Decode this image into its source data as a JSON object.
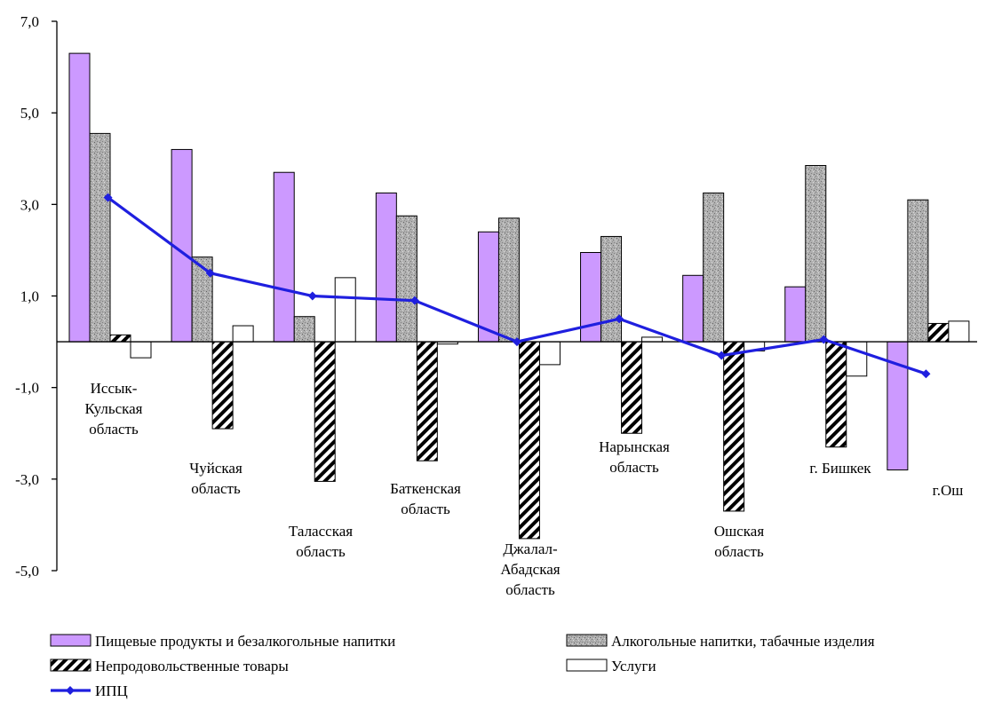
{
  "chart_data": {
    "type": "bar",
    "categories": [
      "Иссык-Кульская область",
      "Чуйская область",
      "Таласская область",
      "Баткенская область",
      "Джалал-Абадская область",
      "Нарынская область",
      "Ошская область",
      "г. Бишкек",
      "г.Ош"
    ],
    "category_label_lines": [
      [
        "Иссык-",
        "Кульская",
        "область"
      ],
      [
        "Чуйская",
        "область"
      ],
      [
        "Таласская",
        "область"
      ],
      [
        "Баткенская",
        "область"
      ],
      [
        "Джалал-",
        "Абадская",
        "область"
      ],
      [
        "Нарынская",
        "область"
      ],
      [
        "Ошская",
        "область"
      ],
      [
        "г. Бишкек"
      ],
      [
        "г.Ош"
      ]
    ],
    "series": [
      {
        "name": "Пищевые продукты и безалкогольные напитки",
        "kind": "bar",
        "color": "#cc99ff",
        "pattern": "solid",
        "values": [
          6.3,
          4.2,
          3.7,
          3.25,
          2.4,
          1.95,
          1.45,
          1.2,
          -2.8
        ]
      },
      {
        "name": "Алкогольные напитки, табачные изделия",
        "kind": "bar",
        "color": "#a6a6a6",
        "pattern": "speckle",
        "values": [
          4.55,
          1.85,
          0.55,
          2.75,
          2.7,
          2.3,
          3.25,
          3.85,
          3.1
        ]
      },
      {
        "name": "Непродовольственные товары",
        "kind": "bar",
        "color": "#000000",
        "pattern": "diagonal",
        "values": [
          0.15,
          -1.9,
          -3.05,
          -2.6,
          -4.3,
          -2.0,
          -3.7,
          -2.3,
          0.4
        ]
      },
      {
        "name": "Услуги",
        "kind": "bar",
        "color": "#ffffff",
        "pattern": "solid",
        "values": [
          -0.35,
          0.35,
          1.4,
          -0.05,
          -0.5,
          0.1,
          -0.2,
          -0.75,
          0.45
        ]
      },
      {
        "name": "ИПЦ",
        "kind": "line",
        "color": "#1f1fdf",
        "values": [
          3.15,
          1.5,
          1.0,
          0.9,
          0.0,
          0.5,
          -0.3,
          0.05,
          -0.7
        ]
      }
    ],
    "y_ticks": [
      "7,0",
      "5,0",
      "3,0",
      "1,0",
      "-1,0",
      "-3,0",
      "-5,0"
    ],
    "y_tick_values": [
      7,
      5,
      3,
      1,
      -1,
      -3,
      -5
    ],
    "ylim": [
      -5,
      7
    ],
    "grid": false,
    "legend_position": "bottom",
    "legend_labels": {
      "food": "Пищевые продукты и безалкогольные напитки",
      "alcohol": "Алкогольные напитки, табачные изделия",
      "nonfood": "Непродовольственные товары",
      "services": "Услуги",
      "cpi": "ИПЦ"
    }
  }
}
